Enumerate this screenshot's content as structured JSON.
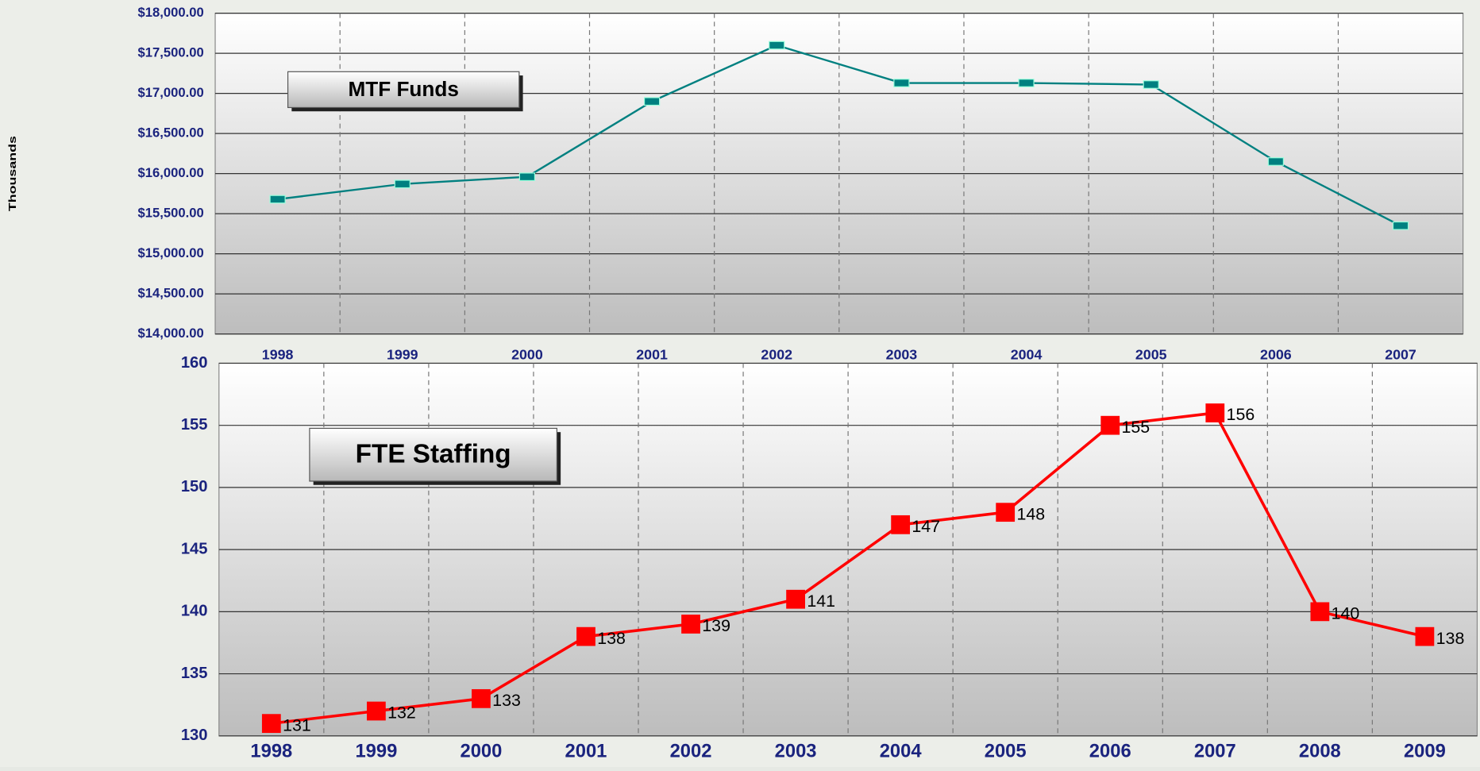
{
  "chart_data": [
    {
      "type": "line",
      "title": "MTF Funds",
      "y_label": "Thousands",
      "categories": [
        "1998",
        "1999",
        "2000",
        "2001",
        "2002",
        "2003",
        "2004",
        "2005",
        "2006",
        "2007"
      ],
      "series": [
        {
          "name": "MTF Funds",
          "color": "#008080",
          "values": [
            15680,
            15870,
            15960,
            16900,
            17600,
            17130,
            17130,
            17110,
            16150,
            15350
          ]
        }
      ],
      "ylim": [
        14000,
        18000
      ],
      "yticks": [
        {
          "value": 14000,
          "label": "$14,000.00"
        },
        {
          "value": 14500,
          "label": "$14,500.00"
        },
        {
          "value": 15000,
          "label": "$15,000.00"
        },
        {
          "value": 15500,
          "label": "$15,500.00"
        },
        {
          "value": 16000,
          "label": "$16,000.00"
        },
        {
          "value": 16500,
          "label": "$16,500.00"
        },
        {
          "value": 17000,
          "label": "$17,000.00"
        },
        {
          "value": 17500,
          "label": "$17,500.00"
        },
        {
          "value": 18000,
          "label": "$18,000.00"
        }
      ],
      "grid": true
    },
    {
      "type": "line",
      "title": "FTE Staffing",
      "categories": [
        "1998",
        "1999",
        "2000",
        "2001",
        "2002",
        "2003",
        "2004",
        "2005",
        "2006",
        "2007",
        "2008",
        "2009"
      ],
      "series": [
        {
          "name": "FTE Staffing",
          "color": "#ff0000",
          "values": [
            131,
            132,
            133,
            138,
            139,
            141,
            147,
            148,
            155,
            156,
            140,
            138
          ]
        }
      ],
      "ylim": [
        130,
        160
      ],
      "yticks": [
        130,
        135,
        140,
        145,
        150,
        155,
        160
      ],
      "grid": true,
      "data_labels": true
    }
  ]
}
